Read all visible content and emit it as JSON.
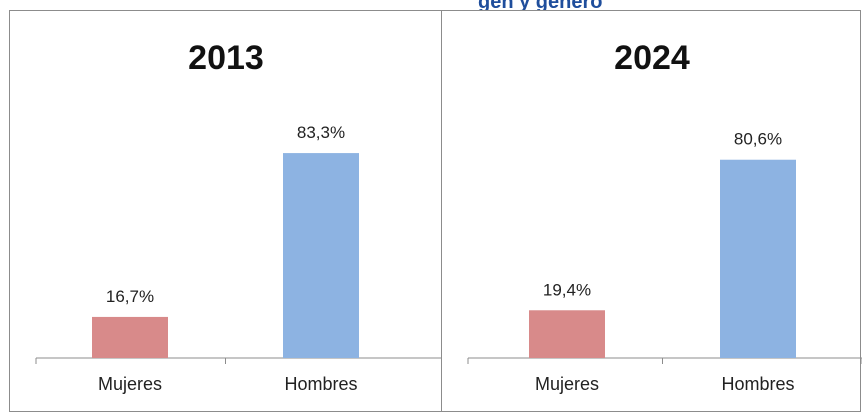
{
  "header": {
    "partial_text": "gen y género"
  },
  "colors": {
    "mujeres": "#d88a8a",
    "hombres": "#8db3e2",
    "axis": "#8c8c8c",
    "text": "#222222"
  },
  "chart_data": [
    {
      "type": "bar",
      "title": "2013",
      "categories": [
        "Mujeres",
        "Hombres"
      ],
      "values": [
        16.7,
        83.3
      ],
      "data_labels": [
        "16,7%",
        "83,3%"
      ],
      "ylim": [
        0,
        100
      ],
      "grid": false,
      "legend": "none"
    },
    {
      "type": "bar",
      "title": "2024",
      "categories": [
        "Mujeres",
        "Hombres"
      ],
      "values": [
        19.4,
        80.6
      ],
      "data_labels": [
        "19,4%",
        "80,6%"
      ],
      "ylim": [
        0,
        100
      ],
      "grid": false,
      "legend": "none"
    }
  ]
}
